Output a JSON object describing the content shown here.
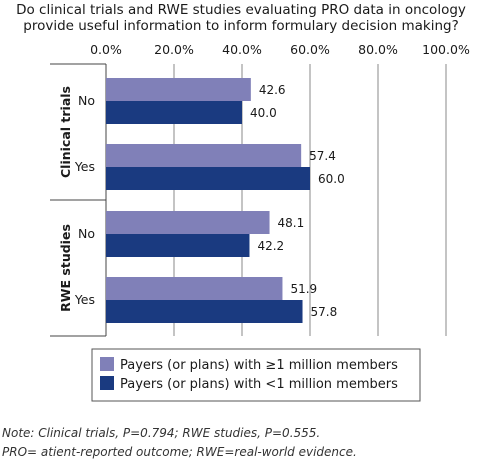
{
  "chart_data": {
    "type": "bar",
    "orientation": "horizontal",
    "title_lines": [
      "Do clinical trials and RWE studies evaluating PRO data in oncology",
      "provide useful information to inform formulary decision making?"
    ],
    "x_ticks": [
      "0.0%",
      "20.0%",
      "40.0%",
      "60.0%",
      "80.0%",
      "100.0%"
    ],
    "xlim": [
      0,
      100
    ],
    "grid": true,
    "legend_position": "bottom",
    "groups": [
      {
        "label": "Clinical trials",
        "categories": [
          "No",
          "Yes"
        ]
      },
      {
        "label": "RWE studies",
        "categories": [
          "No",
          "Yes"
        ]
      }
    ],
    "series": [
      {
        "name": "Payers (or plans) with ≥1 million members",
        "color": "#8080b8",
        "values": [
          42.6,
          57.4,
          48.1,
          51.9
        ]
      },
      {
        "name": "Payers (or plans) with <1 million members",
        "color": "#1a3a80",
        "values": [
          40.0,
          60.0,
          42.2,
          57.8
        ]
      }
    ],
    "value_labels": [
      [
        "42.6",
        "57.4",
        "48.1",
        "51.9"
      ],
      [
        "40.0",
        "60.0",
        "42.2",
        "57.8"
      ]
    ]
  },
  "notes": {
    "line1": "Note: Clinical trials, P=0.794; RWE studies, P=0.555.",
    "line2": "PRO= atient-reported outcome; RWE=real-world evidence."
  }
}
